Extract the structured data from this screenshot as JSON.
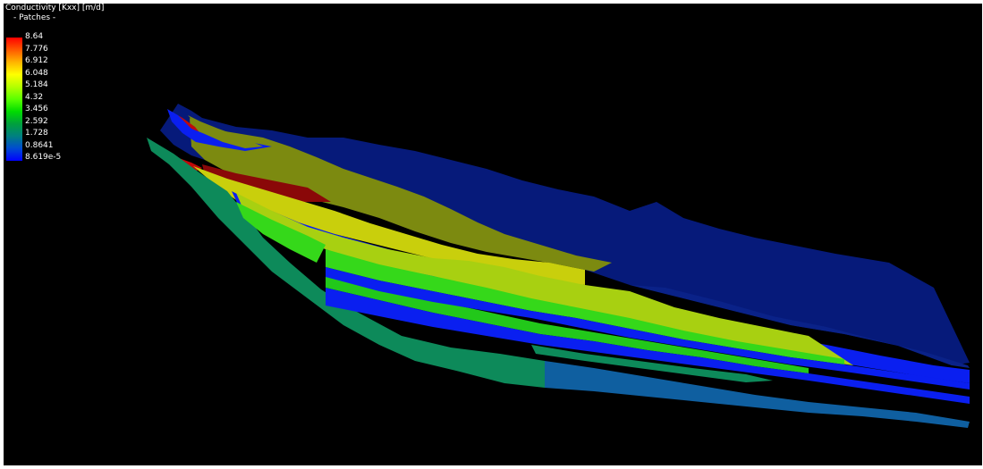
{
  "legend": {
    "title": "Conductivity [Kxx] [m/d]",
    "subtitle": "- Patches -",
    "labels": [
      "8.64",
      "7.776",
      "6.912",
      "6.048",
      "5.184",
      "4.32",
      "3.456",
      "2.592",
      "1.728",
      "0.8641",
      "8.619e-5"
    ],
    "colors": [
      "#ff0000",
      "#ff5a00",
      "#ffb400",
      "#ffff00",
      "#b4ff00",
      "#5aff00",
      "#00dc00",
      "#00a03c",
      "#008080",
      "#004bd2",
      "#0000ff"
    ]
  },
  "model": {
    "colors": {
      "top_surface": "#061a7a",
      "top_surface_light": "#0a2288",
      "blue_layer": "#0a1ff0",
      "olive": "#7c8a10",
      "yellow": "#c9cf0c",
      "yellow_green": "#a8d011",
      "green": "#35d81a",
      "teal": "#0d8a5a",
      "teal_blue": "#0f5fa0",
      "red": "#bf0a0a",
      "dark_red": "#8a0808"
    }
  }
}
